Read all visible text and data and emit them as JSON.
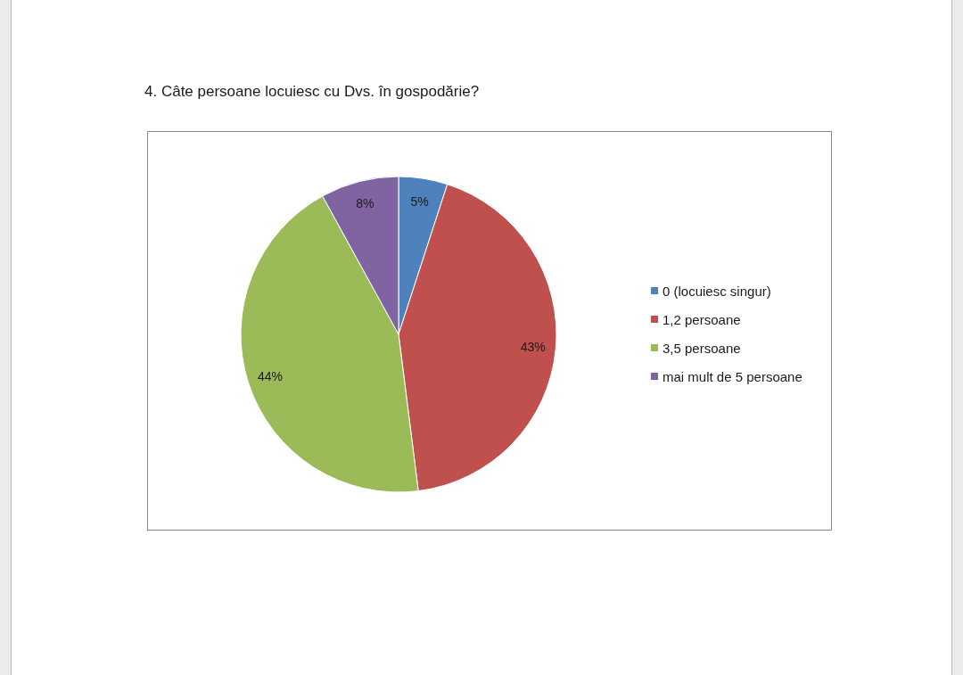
{
  "chart_data": {
    "type": "pie",
    "title": "4. Câte persoane locuiesc cu Dvs. în gospodărie?",
    "categories": [
      "0 (locuiesc singur)",
      "1,2 persoane",
      "3,5 persoane",
      "mai mult de 5 persoane"
    ],
    "values": [
      5,
      43,
      44,
      8
    ],
    "colors": [
      "#4f81bd",
      "#c0504d",
      "#9bbb59",
      "#8064a2"
    ],
    "value_labels": [
      "5%",
      "43%",
      "44%",
      "8%"
    ],
    "legend": "right"
  }
}
